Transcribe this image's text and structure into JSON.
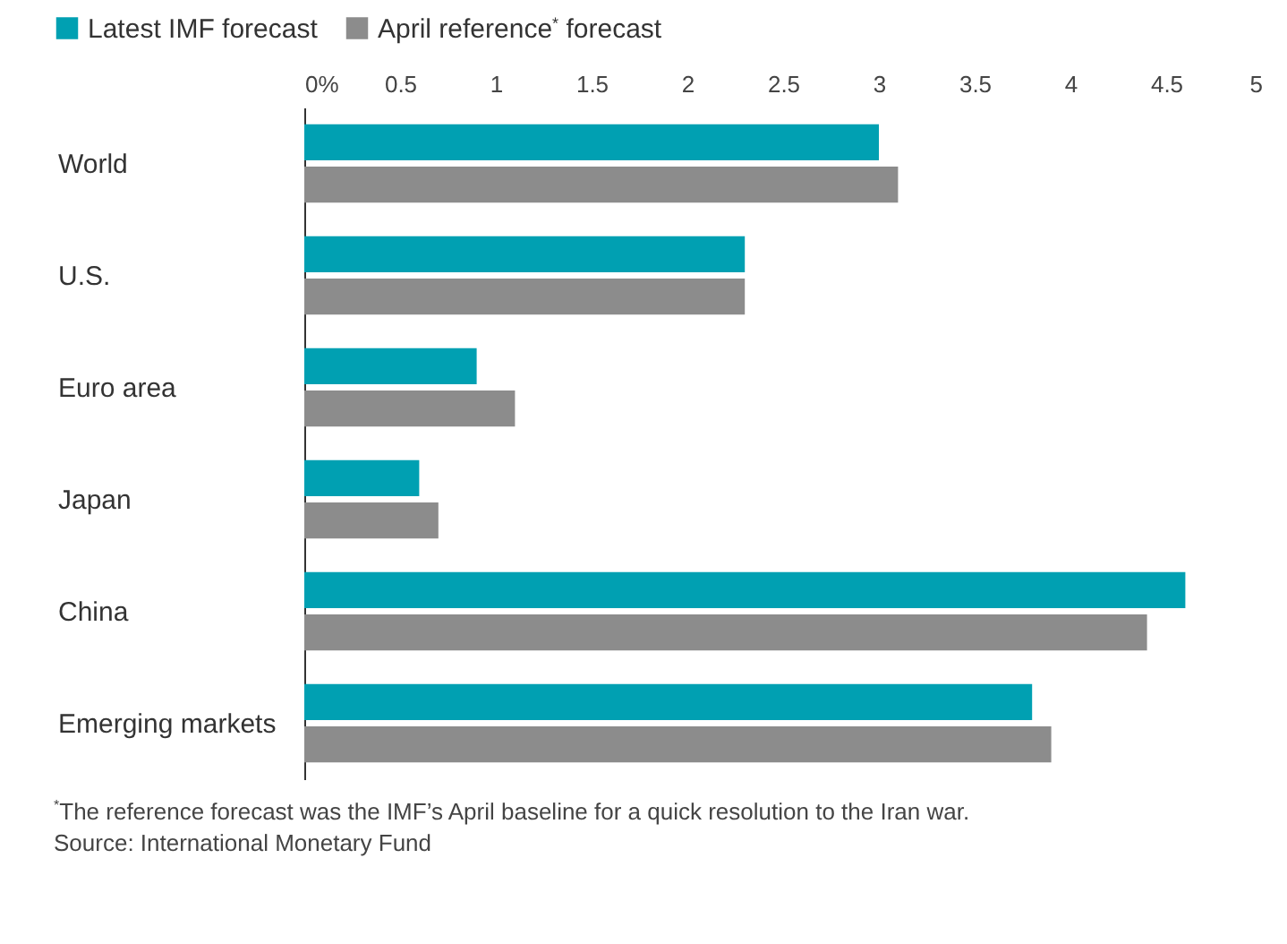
{
  "chart_data": {
    "type": "bar",
    "orientation": "horizontal",
    "categories": [
      "World",
      "U.S.",
      "Euro area",
      "Japan",
      "China",
      "Emerging markets"
    ],
    "series": [
      {
        "name": "Latest IMF forecast",
        "color": "#00a0b2",
        "values": [
          3.0,
          2.3,
          0.9,
          0.6,
          4.6,
          3.8
        ]
      },
      {
        "name": "April reference$^{*}$ forecast",
        "color": "#8c8c8c",
        "values": [
          3.1,
          2.3,
          1.1,
          0.7,
          4.4,
          3.9
        ]
      }
    ],
    "xlim": [
      0,
      5
    ],
    "xticks": [
      {
        "value": 0,
        "label": "0%"
      },
      0.5,
      1,
      1.5,
      2,
      2.5,
      3,
      3.5,
      4,
      4.5,
      5
    ],
    "grid": false,
    "legend": "top left",
    "annotations": [
      "$^{*}$The reference forecast was the IMF’s April baseline for a quick resolution to the Iran war.",
      "Source: International Monetary Fund"
    ]
  }
}
